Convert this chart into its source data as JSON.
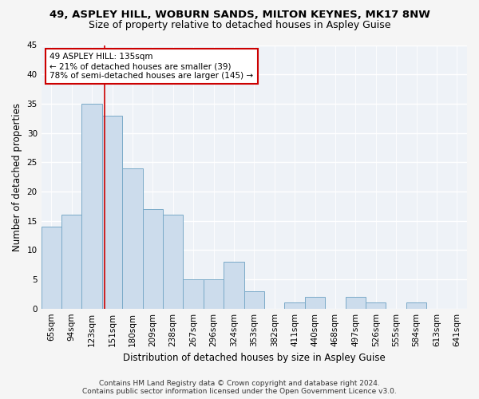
{
  "title1": "49, ASPLEY HILL, WOBURN SANDS, MILTON KEYNES, MK17 8NW",
  "title2": "Size of property relative to detached houses in Aspley Guise",
  "xlabel": "Distribution of detached houses by size in Aspley Guise",
  "ylabel": "Number of detached properties",
  "categories": [
    "65sqm",
    "94sqm",
    "123sqm",
    "151sqm",
    "180sqm",
    "209sqm",
    "238sqm",
    "267sqm",
    "296sqm",
    "324sqm",
    "353sqm",
    "382sqm",
    "411sqm",
    "440sqm",
    "468sqm",
    "497sqm",
    "526sqm",
    "555sqm",
    "584sqm",
    "613sqm",
    "641sqm"
  ],
  "values": [
    14,
    16,
    35,
    33,
    24,
    17,
    16,
    5,
    5,
    8,
    3,
    0,
    1,
    2,
    0,
    2,
    1,
    0,
    1,
    0,
    0
  ],
  "bar_color": "#ccdcec",
  "bar_edge_color": "#7aaac8",
  "bar_width": 1.0,
  "ylim": [
    0,
    45
  ],
  "yticks": [
    0,
    5,
    10,
    15,
    20,
    25,
    30,
    35,
    40,
    45
  ],
  "red_line_x": 2.62,
  "annotation_line1": "49 ASPLEY HILL: 135sqm",
  "annotation_line2": "← 21% of detached houses are smaller (39)",
  "annotation_line3": "78% of semi-detached houses are larger (145) →",
  "annotation_box_color": "#ffffff",
  "annotation_box_edge_color": "#cc0000",
  "footer_line1": "Contains HM Land Registry data © Crown copyright and database right 2024.",
  "footer_line2": "Contains public sector information licensed under the Open Government Licence v3.0.",
  "background_color": "#eef2f7",
  "grid_color": "#ffffff",
  "title1_fontsize": 9.5,
  "title2_fontsize": 9,
  "xlabel_fontsize": 8.5,
  "ylabel_fontsize": 8.5,
  "tick_fontsize": 7.5,
  "annotation_fontsize": 7.5,
  "footer_fontsize": 6.5
}
